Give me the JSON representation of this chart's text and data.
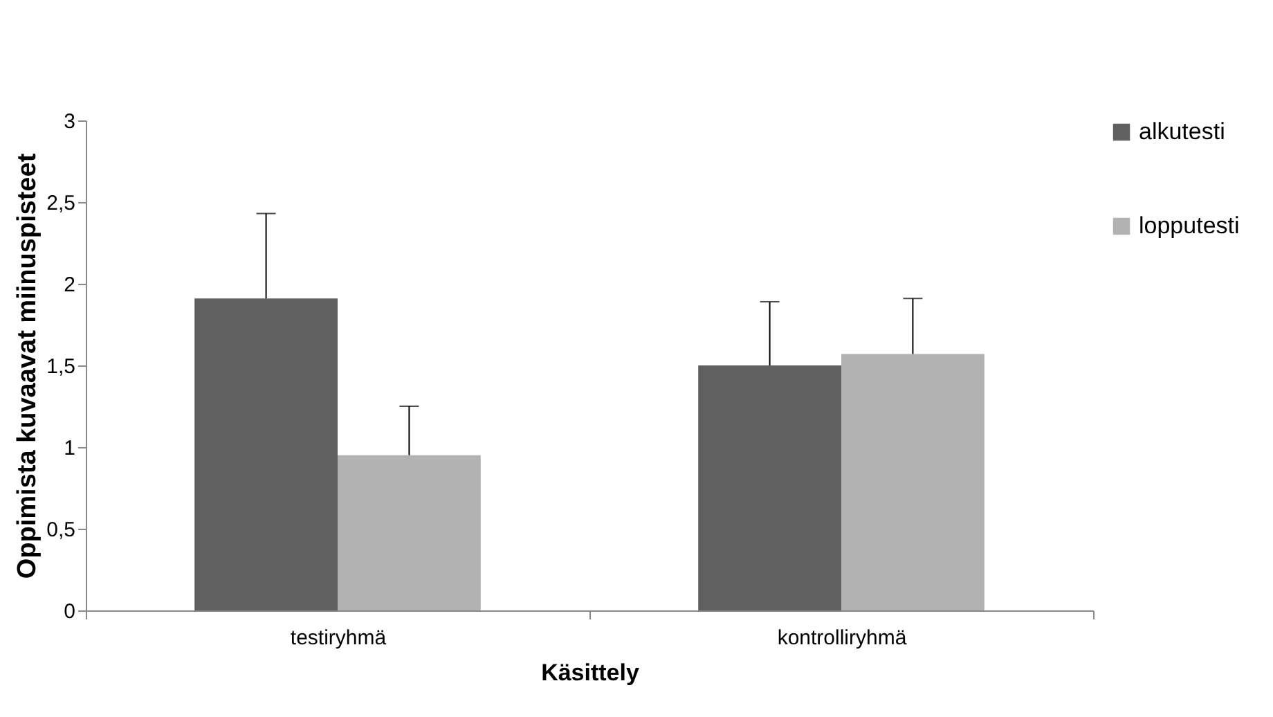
{
  "chart_data": {
    "type": "bar",
    "xlabel": "Käsittely",
    "ylabel": "Oppimista kuvaavat miinuspisteet",
    "categories": [
      "testiryhmä",
      "kontrolliryhmä"
    ],
    "series": [
      {
        "name": "alkutesti",
        "color": "#606060",
        "values": [
          1.91,
          1.5
        ],
        "errors": [
          [
            1.91,
            2.43
          ],
          [
            1.5,
            1.89
          ]
        ]
      },
      {
        "name": "lopputesti",
        "color": "#b2b2b2",
        "values": [
          0.95,
          1.57
        ],
        "errors": [
          [
            0.95,
            1.25
          ],
          [
            1.57,
            1.91
          ]
        ]
      }
    ],
    "ylim": [
      0,
      3
    ],
    "yticks": [
      0,
      {
        "value": 0.5,
        "label": "0,5"
      },
      1,
      {
        "value": 1.5,
        "label": "1,5"
      },
      2,
      {
        "value": 2.5,
        "label": "2,5"
      },
      3
    ],
    "legend": "right",
    "grid": false
  }
}
